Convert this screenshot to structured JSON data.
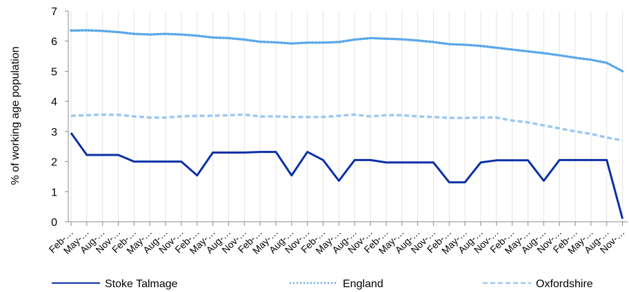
{
  "chart_data": {
    "type": "line",
    "title": "",
    "xlabel": "",
    "ylabel": "% of working age population",
    "ylim": [
      0,
      7
    ],
    "yticks": [
      0,
      1,
      2,
      3,
      4,
      5,
      6,
      7
    ],
    "grid": "vertical",
    "legend_position": "bottom",
    "categories": [
      "Feb-…",
      "May-…",
      "Aug-…",
      "Nov-…",
      "Feb-…",
      "May-…",
      "Aug-…",
      "Nov-…",
      "Feb-…",
      "May-…",
      "Aug-…",
      "Nov-…",
      "Feb-…",
      "May-…",
      "Aug-…",
      "Nov-…",
      "Feb-…",
      "May-…",
      "Aug-…",
      "Nov-…",
      "Feb-…",
      "May-…",
      "Aug-…",
      "Nov-…",
      "Feb-…",
      "May-…",
      "Aug-…",
      "Nov-…",
      "Feb-…",
      "May-…",
      "Aug-…",
      "Nov-…",
      "Feb-…",
      "May-…",
      "Aug-…",
      "Nov-…"
    ],
    "series": [
      {
        "name": "Stoke Talmage",
        "color": "#0a2fa5",
        "style": "solid",
        "values": [
          2.95,
          2.22,
          2.22,
          2.22,
          2.0,
          2.0,
          2.0,
          2.0,
          1.54,
          2.3,
          2.3,
          2.3,
          2.32,
          2.32,
          1.54,
          2.32,
          2.05,
          1.36,
          2.05,
          2.05,
          1.97,
          1.97,
          1.97,
          1.97,
          1.31,
          1.31,
          1.97,
          2.04,
          2.04,
          2.04,
          1.36,
          2.05,
          2.05,
          2.05,
          2.05,
          0.1
        ]
      },
      {
        "name": "England",
        "color": "#5aa7ea",
        "style": "dotted",
        "values": [
          6.35,
          6.36,
          6.34,
          6.3,
          6.24,
          6.22,
          6.24,
          6.22,
          6.18,
          6.12,
          6.1,
          6.05,
          5.98,
          5.96,
          5.92,
          5.95,
          5.95,
          5.97,
          6.05,
          6.1,
          6.08,
          6.06,
          6.02,
          5.97,
          5.9,
          5.88,
          5.84,
          5.78,
          5.72,
          5.66,
          5.6,
          5.53,
          5.45,
          5.38,
          5.28,
          5.0
        ]
      },
      {
        "name": "Oxfordshire",
        "color": "#9cc8f2",
        "style": "dashed",
        "values": [
          3.52,
          3.54,
          3.56,
          3.55,
          3.5,
          3.46,
          3.46,
          3.5,
          3.52,
          3.52,
          3.54,
          3.56,
          3.5,
          3.5,
          3.48,
          3.48,
          3.48,
          3.52,
          3.56,
          3.5,
          3.54,
          3.54,
          3.5,
          3.48,
          3.45,
          3.45,
          3.46,
          3.46,
          3.36,
          3.3,
          3.2,
          3.1,
          3.0,
          2.92,
          2.8,
          2.7
        ]
      }
    ]
  }
}
